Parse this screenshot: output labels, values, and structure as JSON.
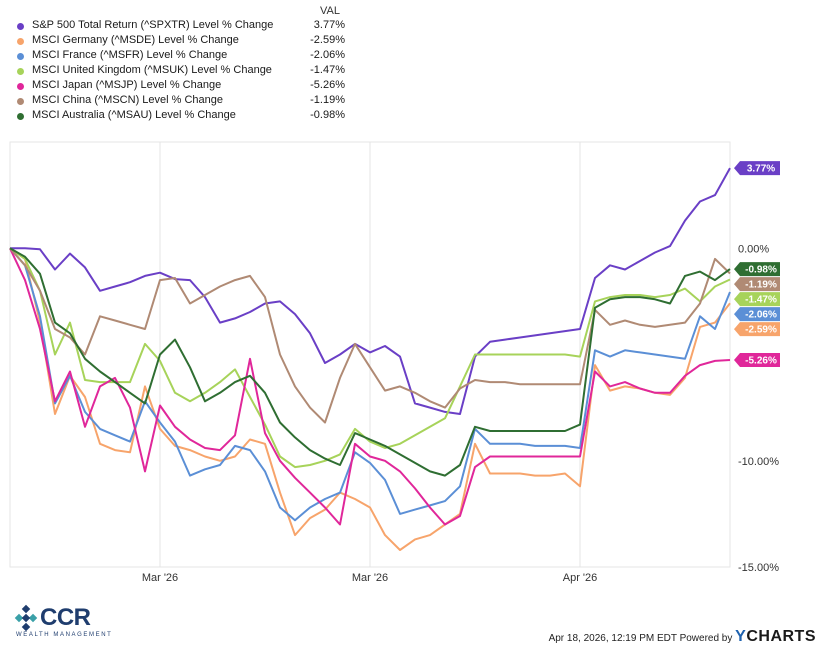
{
  "legend": {
    "header": "VAL",
    "items": [
      {
        "name": "S&P 500 Total Return (^SPXTR) Level % Change",
        "value": "3.77%",
        "color": "#6a3fc6"
      },
      {
        "name": "MSCI Germany (^MSDE) Level % Change",
        "value": "-2.59%",
        "color": "#f7a46b"
      },
      {
        "name": "MSCI France (^MSFR) Level % Change",
        "value": "-2.06%",
        "color": "#5b8fd6"
      },
      {
        "name": "MSCI United Kingdom (^MSUK) Level % Change",
        "value": "-1.47%",
        "color": "#a7d35a"
      },
      {
        "name": "MSCI Japan (^MSJP) Level % Change",
        "value": "-5.26%",
        "color": "#e0279a"
      },
      {
        "name": "MSCI China (^MSCN) Level % Change",
        "value": "-1.19%",
        "color": "#b08a74"
      },
      {
        "name": "MSCI Australia (^MSAU) Level % Change",
        "value": "-0.98%",
        "color": "#2f6e32"
      }
    ]
  },
  "chart_data": {
    "type": "line",
    "ylim": [
      -15,
      5
    ],
    "y_ticks": [
      {
        "value": 0,
        "label": "0.00%"
      },
      {
        "value": -10,
        "label": "-10.00%"
      },
      {
        "value": -15,
        "label": "-15.00%"
      }
    ],
    "x_ticks": [
      {
        "index": 10,
        "label": "Mar '26"
      },
      {
        "index": 24,
        "label": "Mar '26"
      },
      {
        "index": 38,
        "label": "Apr '26"
      }
    ],
    "grid": "vertical",
    "series": [
      {
        "name": "S&P 500 Total Return (^SPXTR) Level % Change",
        "end_label": "3.77%",
        "color": "#6a3fc6",
        "values": [
          0,
          0,
          -0.05,
          -1,
          -0.25,
          -0.9,
          -2,
          -1.8,
          -1.6,
          -1.3,
          -1.15,
          -1.45,
          -1.5,
          -2.3,
          -3.5,
          -3.3,
          -3,
          -2.6,
          -2.5,
          -3.1,
          -4,
          -5.4,
          -5,
          -4.5,
          -4.9,
          -4.6,
          -5.1,
          -7.3,
          -7.5,
          -7.7,
          -7.8,
          -5.1,
          -4.4,
          -4.3,
          -4.2,
          -4.1,
          -4,
          -3.9,
          -3.8,
          -1.4,
          -0.8,
          -1,
          -0.6,
          -0.2,
          0.1,
          1.3,
          2.2,
          2.5,
          3.77
        ]
      },
      {
        "name": "MSCI Germany (^MSDE) Level % Change",
        "end_label": "-2.59%",
        "color": "#f7a46b",
        "values": [
          0,
          -0.5,
          -3.5,
          -7.8,
          -6,
          -7,
          -9.2,
          -9.5,
          -9.6,
          -6.5,
          -8.5,
          -9.3,
          -9.5,
          -9.8,
          -10,
          -9.8,
          -9,
          -9.2,
          -11.5,
          -13.5,
          -12.7,
          -12.3,
          -11.5,
          -11.8,
          -12.2,
          -13.5,
          -14.2,
          -13.7,
          -13.5,
          -13,
          -12.5,
          -9.2,
          -10.6,
          -10.6,
          -10.6,
          -10.7,
          -10.7,
          -10.6,
          -11.2,
          -5.5,
          -6.7,
          -6.5,
          -6.6,
          -6.8,
          -6.9,
          -6.1,
          -3.7,
          -3.5,
          -2.59
        ]
      },
      {
        "name": "MSCI France (^MSFR) Level % Change",
        "end_label": "-2.06%",
        "color": "#5b8fd6",
        "values": [
          0,
          -0.8,
          -3.2,
          -7.3,
          -6,
          -7.7,
          -8.5,
          -8.8,
          -9.1,
          -7.2,
          -8.2,
          -9.1,
          -10.7,
          -10.4,
          -10.2,
          -9.3,
          -9.5,
          -10.5,
          -12.2,
          -12.8,
          -12.2,
          -11.8,
          -11.5,
          -9.6,
          -10.1,
          -10.9,
          -12.5,
          -12.3,
          -12.1,
          -11.9,
          -11.2,
          -8.5,
          -9.2,
          -9.2,
          -9.2,
          -9.3,
          -9.3,
          -9.3,
          -9.4,
          -4.8,
          -5.1,
          -4.8,
          -4.9,
          -5,
          -5.1,
          -5.2,
          -3.2,
          -3.8,
          -2.06
        ]
      },
      {
        "name": "MSCI United Kingdom (^MSUK) Level % Change",
        "end_label": "-1.47%",
        "color": "#a7d35a",
        "values": [
          0,
          -0.5,
          -2,
          -5,
          -3.5,
          -6.2,
          -6.3,
          -6.3,
          -6.3,
          -4.5,
          -5.3,
          -6.8,
          -7.2,
          -6.8,
          -6.3,
          -5.7,
          -7,
          -8.3,
          -9.8,
          -10.3,
          -10.2,
          -10,
          -9.7,
          -8.5,
          -9.1,
          -9.4,
          -9.2,
          -8.8,
          -8.4,
          -8,
          -6.5,
          -5,
          -5,
          -5,
          -5,
          -5,
          -5,
          -5,
          -5.1,
          -2.5,
          -2.3,
          -2.2,
          -2.2,
          -2.3,
          -2.2,
          -1.9,
          -2.5,
          -1.8,
          -1.47
        ]
      },
      {
        "name": "MSCI Japan (^MSJP) Level % Change",
        "end_label": "-5.26%",
        "color": "#e0279a",
        "values": [
          0,
          -1.5,
          -3.8,
          -7.2,
          -5.8,
          -8.4,
          -6.5,
          -6.1,
          -7.5,
          -10.5,
          -7.4,
          -8.4,
          -9,
          -9.4,
          -9.5,
          -8.8,
          -5.2,
          -8.7,
          -10,
          -10.8,
          -11.5,
          -12.2,
          -13,
          -9.2,
          -9.8,
          -10,
          -10.5,
          -11.3,
          -12.2,
          -13,
          -12.6,
          -10.3,
          -9.8,
          -9.8,
          -9.8,
          -9.8,
          -9.8,
          -9.8,
          -9.8,
          -5.8,
          -6.5,
          -6.3,
          -6.6,
          -6.8,
          -6.8,
          -6,
          -5.5,
          -5.3,
          -5.26
        ]
      },
      {
        "name": "MSCI China (^MSCN) Level % Change",
        "end_label": "-1.19%",
        "color": "#b08a74",
        "values": [
          0,
          -0.8,
          -2,
          -3.8,
          -4.2,
          -5,
          -3.2,
          -3.4,
          -3.6,
          -3.8,
          -1.5,
          -1.4,
          -2.6,
          -2.2,
          -1.8,
          -1.5,
          -1.3,
          -2.3,
          -5,
          -6.5,
          -7.5,
          -8.2,
          -6.1,
          -4.5,
          -5.6,
          -6.7,
          -6.5,
          -6.8,
          -7.2,
          -7.5,
          -6.6,
          -6.2,
          -6.3,
          -6.3,
          -6.4,
          -6.4,
          -6.4,
          -6.4,
          -6.4,
          -2.9,
          -3.6,
          -3.4,
          -3.6,
          -3.7,
          -3.6,
          -3.5,
          -2.6,
          -0.5,
          -1.19
        ]
      },
      {
        "name": "MSCI Australia (^MSAU) Level % Change",
        "end_label": "-0.98%",
        "color": "#2f6e32",
        "values": [
          0,
          -0.4,
          -1.2,
          -3.5,
          -4,
          -5.2,
          -5.8,
          -6.3,
          -6.8,
          -7.3,
          -5,
          -4.3,
          -5.6,
          -7.2,
          -6.8,
          -6.3,
          -6,
          -6.8,
          -8.2,
          -8.9,
          -9.5,
          -9.9,
          -10.2,
          -8.7,
          -9,
          -9.3,
          -9.7,
          -10.1,
          -10.5,
          -10.7,
          -10.2,
          -8.4,
          -8.6,
          -8.6,
          -8.6,
          -8.6,
          -8.6,
          -8.6,
          -8.3,
          -2.8,
          -2.4,
          -2.3,
          -2.3,
          -2.4,
          -2.6,
          -1.3,
          -1.1,
          -1.5,
          -0.98
        ]
      }
    ]
  },
  "footer": {
    "timestamp": "Apr 18, 2026, 12:19 PM EDT Powered by",
    "brand_y": "Y",
    "brand_rest": "CHARTS"
  },
  "logo": {
    "text": "CCR",
    "subtitle": "WEALTH MANAGEMENT",
    "color": "#1f3d6e"
  }
}
